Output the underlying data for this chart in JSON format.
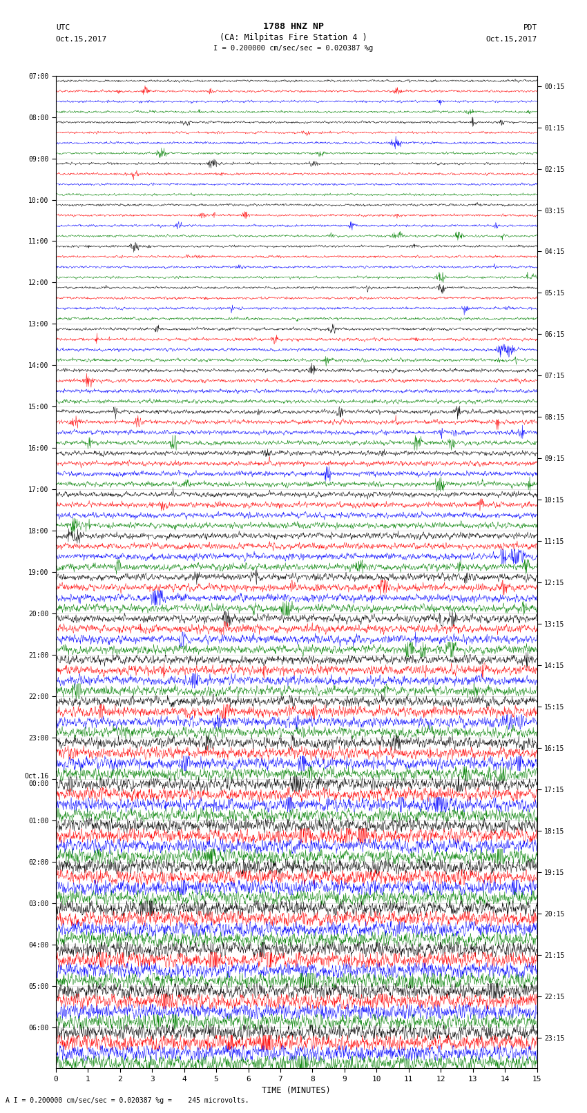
{
  "title_line1": "1788 HNZ NP",
  "title_line2": "(CA: Milpitas Fire Station 4 )",
  "scale_text": "I = 0.200000 cm/sec/sec = 0.020387 %g",
  "footer_text": "A I = 0.200000 cm/sec/sec = 0.020387 %g =    245 microvolts.",
  "left_label_line1": "UTC",
  "left_label_line2": "Oct.15,2017",
  "right_label_line1": "PDT",
  "right_label_line2": "Oct.15,2017",
  "xlabel": "TIME (MINUTES)",
  "num_rows": 96,
  "colors": [
    "black",
    "red",
    "blue",
    "green"
  ],
  "background_color": "white",
  "fig_width": 8.5,
  "fig_height": 16.13,
  "dpi": 100,
  "xmin": 0,
  "xmax": 15,
  "xticks": [
    0,
    1,
    2,
    3,
    4,
    5,
    6,
    7,
    8,
    9,
    10,
    11,
    12,
    13,
    14,
    15
  ],
  "noise_seed": 42,
  "left_ytick_times": [
    "07:00",
    "08:00",
    "09:00",
    "10:00",
    "11:00",
    "12:00",
    "13:00",
    "14:00",
    "15:00",
    "16:00",
    "17:00",
    "18:00",
    "19:00",
    "20:00",
    "21:00",
    "22:00",
    "23:00",
    "Oct.16\n00:00",
    "01:00",
    "02:00",
    "03:00",
    "04:00",
    "05:00",
    "06:00"
  ],
  "right_ytick_times": [
    "00:15",
    "01:15",
    "02:15",
    "03:15",
    "04:15",
    "05:15",
    "06:15",
    "07:15",
    "08:15",
    "09:15",
    "10:15",
    "11:15",
    "12:15",
    "13:15",
    "14:15",
    "15:15",
    "16:15",
    "17:15",
    "18:15",
    "19:15",
    "20:15",
    "21:15",
    "22:15",
    "23:15"
  ],
  "left_ytick_row_indices": [
    0,
    4,
    8,
    12,
    16,
    20,
    24,
    28,
    32,
    36,
    40,
    44,
    48,
    52,
    56,
    60,
    64,
    68,
    72,
    76,
    80,
    84,
    88,
    92
  ],
  "right_ytick_row_indices": [
    1,
    5,
    9,
    13,
    17,
    21,
    25,
    29,
    33,
    37,
    41,
    45,
    49,
    53,
    57,
    61,
    65,
    69,
    73,
    77,
    81,
    85,
    89,
    93
  ]
}
